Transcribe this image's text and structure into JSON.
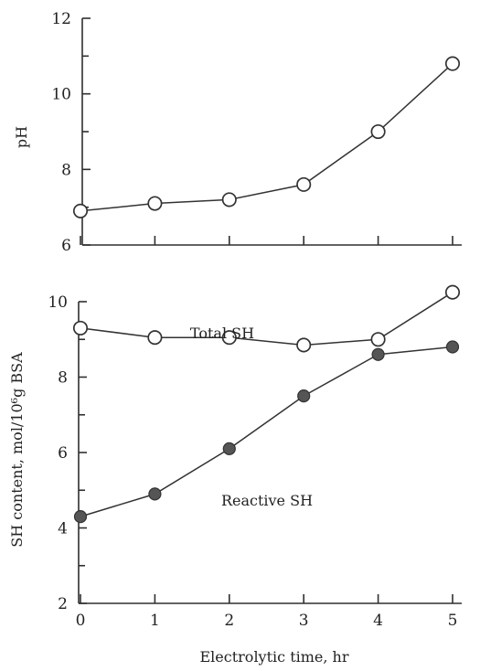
{
  "chart_data": [
    {
      "type": "line",
      "x": [
        0,
        1,
        2,
        3,
        4,
        5
      ],
      "series": [
        {
          "values": [
            6.9,
            7.1,
            7.2,
            7.6,
            9.0,
            10.8
          ],
          "marker": "open-circle"
        }
      ],
      "xlabel": "",
      "ylabel": "pH",
      "xlim": [
        0,
        5
      ],
      "ylim": [
        6,
        12
      ],
      "yticks": [
        6,
        8,
        10,
        12
      ],
      "xticks": [
        0,
        1,
        2,
        3,
        4,
        5
      ],
      "grid": false
    },
    {
      "type": "line",
      "x": [
        0,
        1,
        2,
        3,
        4,
        5
      ],
      "series": [
        {
          "name": "Total SH",
          "values": [
            9.3,
            9.05,
            9.05,
            8.85,
            9.0,
            10.25
          ],
          "marker": "open-circle"
        },
        {
          "name": "Reactive SH",
          "values": [
            4.3,
            4.9,
            6.1,
            7.5,
            8.6,
            8.8
          ],
          "marker": "filled-circle"
        }
      ],
      "xlabel": "Electrolytic time, hr",
      "ylabel": "SH content, mol/10⁶g BSA",
      "xlim": [
        0,
        5
      ],
      "ylim": [
        2,
        10
      ],
      "yticks": [
        2,
        4,
        6,
        8,
        10
      ],
      "xticks": [
        0,
        1,
        2,
        3,
        4,
        5
      ],
      "grid": false
    }
  ],
  "colors": {
    "line": "#333333",
    "marker_fill": "#ffffff",
    "filled_marker": "#555555"
  }
}
